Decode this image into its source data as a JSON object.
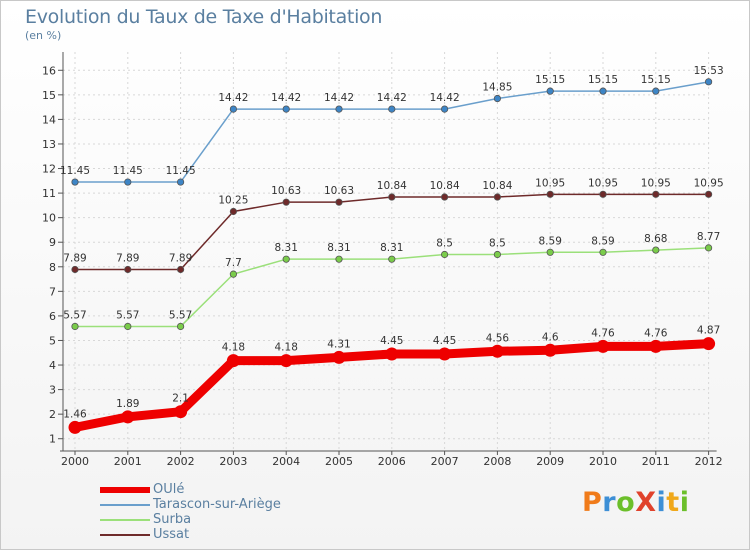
{
  "title": "Evolution du Taux de Taxe d'Habitation",
  "subtitle": "(en %)",
  "logo": {
    "text": "ProXiti",
    "colors": [
      "#f07b1a",
      "#3d8fd6",
      "#6bbf2a",
      "#e0422c",
      "#3d8fd6",
      "#f0a81a",
      "#6bbf2a"
    ]
  },
  "chart_data": {
    "type": "line",
    "categories": [
      "2000",
      "2001",
      "2002",
      "2003",
      "2004",
      "2005",
      "2006",
      "2007",
      "2008",
      "2009",
      "2010",
      "2011",
      "2012"
    ],
    "ylim": [
      0.5,
      16.5
    ],
    "yticks": [
      1,
      2,
      3,
      4,
      5,
      6,
      7,
      8,
      9,
      10,
      11,
      12,
      13,
      14,
      15,
      16
    ],
    "grid": true,
    "legend_placement": "bottom-left",
    "series": [
      {
        "name": "Tarascon-sur-Ariège",
        "color": "#6a9fcc",
        "marker": "#3d85c6",
        "values": [
          11.45,
          11.45,
          11.45,
          14.42,
          14.42,
          14.42,
          14.42,
          14.42,
          14.85,
          15.15,
          15.15,
          15.15,
          15.53
        ],
        "labels": [
          "11.45",
          "11.45",
          "11.45",
          "14.42",
          "14.42",
          "14.42",
          "14.42",
          "14.42",
          "14.85",
          "15.15",
          "15.15",
          "15.15",
          "15.53"
        ]
      },
      {
        "name": "Ussat",
        "color": "#6e2a2a",
        "marker": "#6e2a2a",
        "values": [
          7.89,
          7.89,
          7.89,
          10.25,
          10.63,
          10.63,
          10.84,
          10.84,
          10.84,
          10.95,
          10.95,
          10.95,
          10.95
        ],
        "labels": [
          "7.89",
          "7.89",
          "7.89",
          "10.25",
          "10.63",
          "10.63",
          "10.84",
          "10.84",
          "10.84",
          "10.95",
          "10.95",
          "10.95",
          "10.95"
        ]
      },
      {
        "name": "Surba",
        "color": "#9be07a",
        "marker": "#7acc4a",
        "values": [
          5.57,
          5.57,
          5.57,
          7.7,
          8.31,
          8.31,
          8.31,
          8.5,
          8.5,
          8.59,
          8.59,
          8.68,
          8.77
        ],
        "labels": [
          "5.57",
          "5.57",
          "5.57",
          "7.7",
          "8.31",
          "8.31",
          "8.31",
          "8.5",
          "8.5",
          "8.59",
          "8.59",
          "8.68",
          "8.77"
        ]
      },
      {
        "name": "OUlé",
        "color": "#ee0000",
        "marker": "#ee0000",
        "thick": true,
        "values": [
          1.46,
          1.89,
          2.1,
          4.18,
          4.18,
          4.31,
          4.45,
          4.45,
          4.56,
          4.6,
          4.76,
          4.76,
          4.87
        ],
        "labels": [
          "1.46",
          "1.89",
          "2.1",
          "4.18",
          "4.18",
          "4.31",
          "4.45",
          "4.45",
          "4.56",
          "4.6",
          "4.76",
          "4.76",
          "4.87"
        ]
      }
    ],
    "legend": [
      "OUlé",
      "Tarascon-sur-Ariège",
      "Surba",
      "Ussat"
    ]
  }
}
